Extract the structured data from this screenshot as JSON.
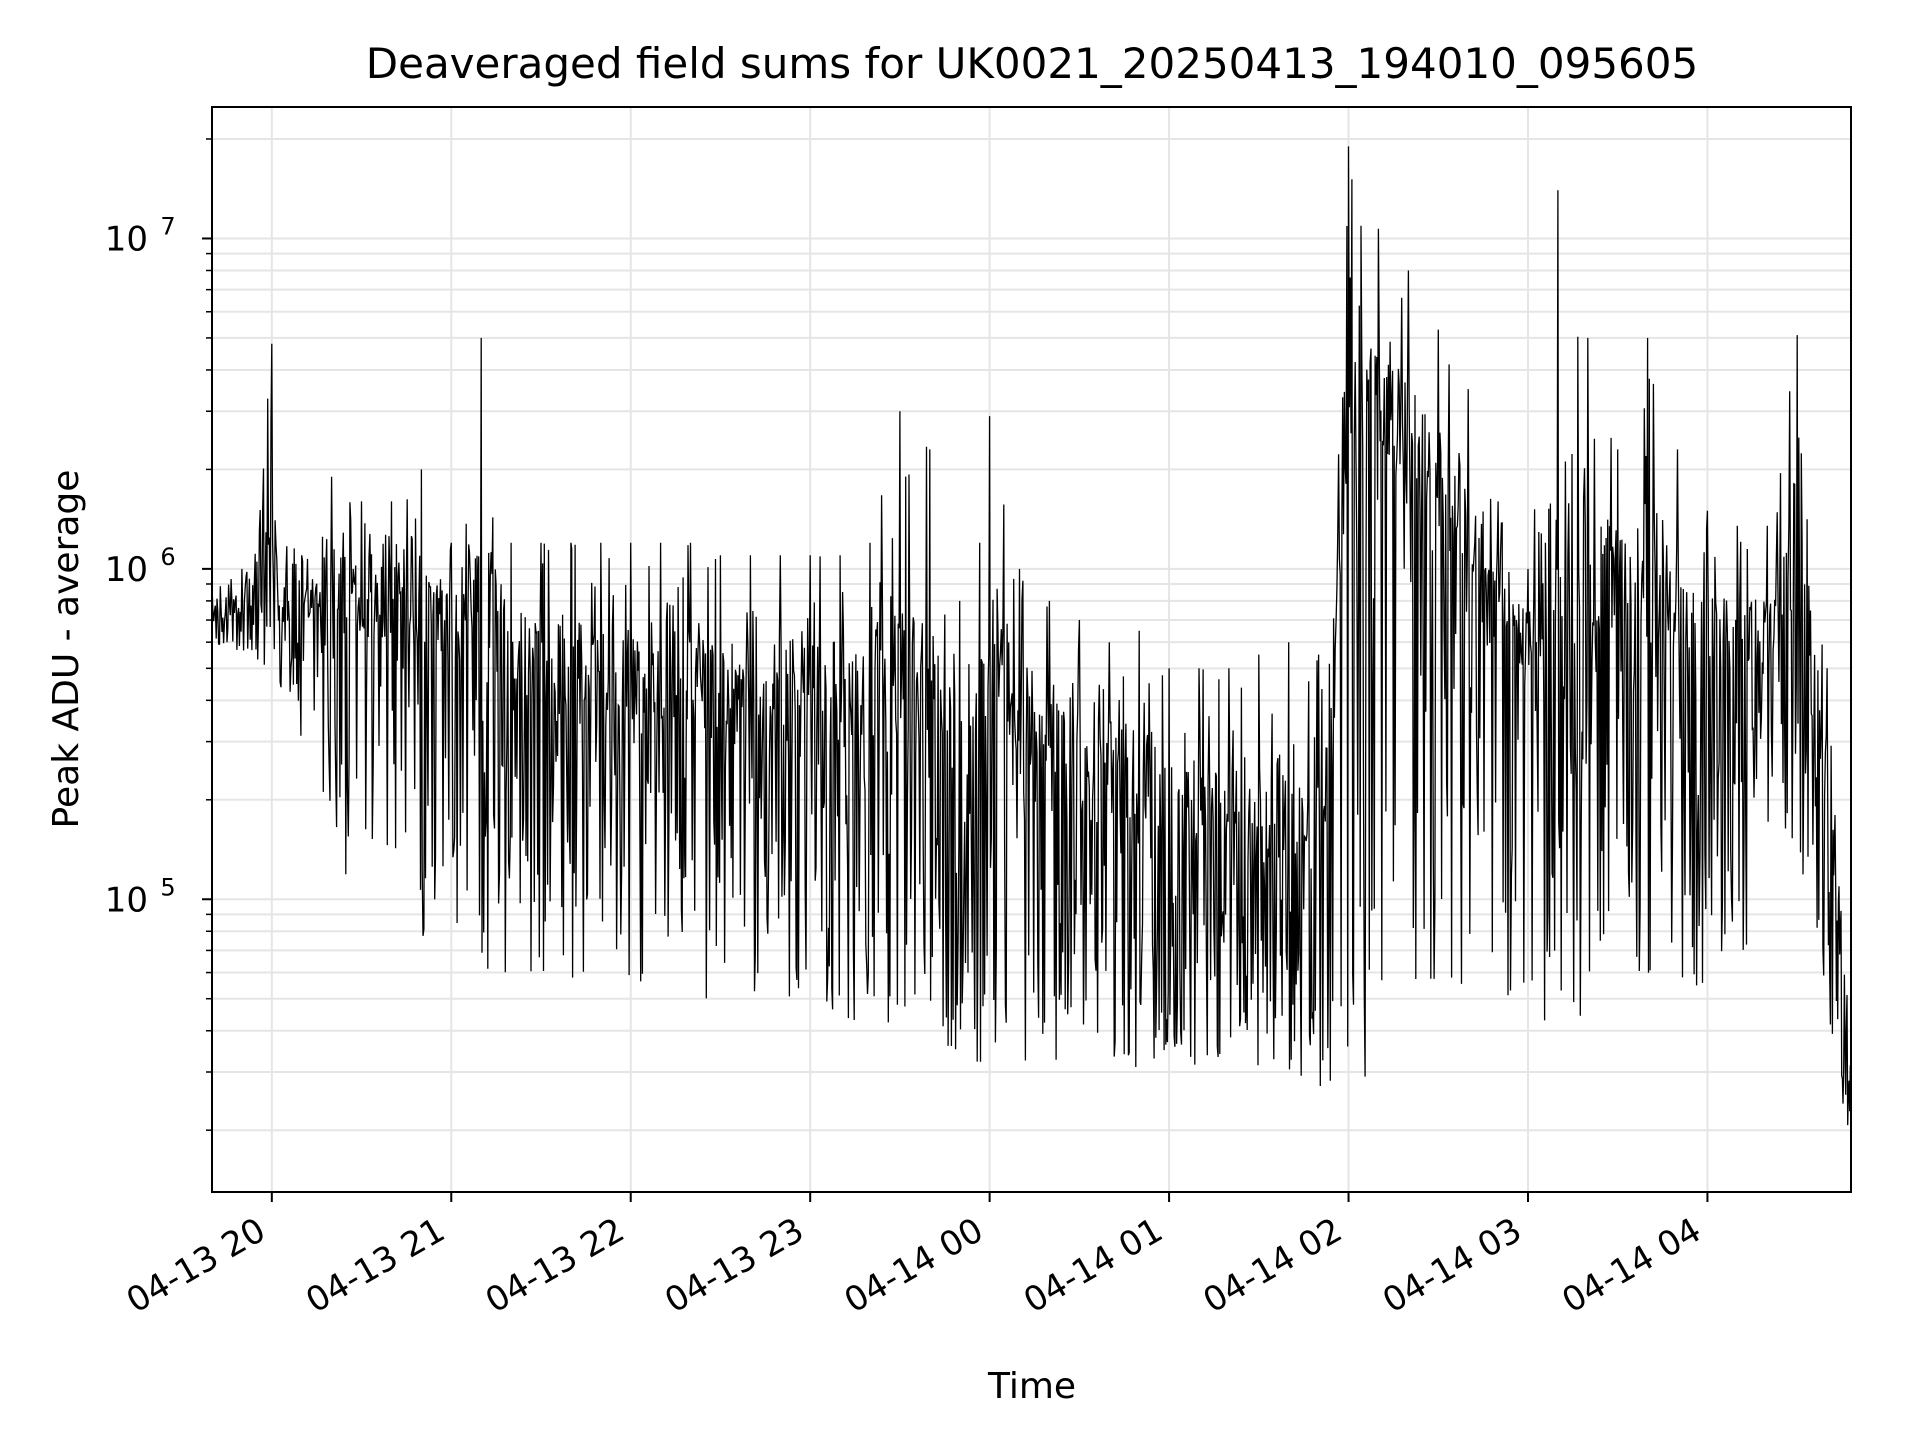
{
  "chart_data": {
    "type": "line",
    "title": "Deaveraged field sums for UK0021_20250413_194010_095605",
    "xlabel": "Time",
    "ylabel": "Peak ADU - average",
    "yscale": "log",
    "ylim": [
      13000,
      25000000
    ],
    "xlim": [
      "2025-04-13 19:40",
      "2025-04-14 04:48"
    ],
    "grid": true,
    "line_color": "#000000",
    "grid_color": "#e5e5e5",
    "x_ticks": [
      {
        "value": "2025-04-13 20:00",
        "label": "04-13 20"
      },
      {
        "value": "2025-04-13 21:00",
        "label": "04-13 21"
      },
      {
        "value": "2025-04-13 22:00",
        "label": "04-13 22"
      },
      {
        "value": "2025-04-13 23:00",
        "label": "04-13 23"
      },
      {
        "value": "2025-04-14 00:00",
        "label": "04-14 00"
      },
      {
        "value": "2025-04-14 01:00",
        "label": "04-14 01"
      },
      {
        "value": "2025-04-14 02:00",
        "label": "04-14 02"
      },
      {
        "value": "2025-04-14 03:00",
        "label": "04-14 03"
      },
      {
        "value": "2025-04-14 04:00",
        "label": "04-14 04"
      }
    ],
    "y_ticks": [
      {
        "value": 100000,
        "base": "10",
        "exp": "5"
      },
      {
        "value": 1000000,
        "base": "10",
        "exp": "6"
      },
      {
        "value": 10000000,
        "base": "10",
        "exp": "7"
      }
    ],
    "series": [
      {
        "x": [
          "2025-04-13 19:40",
          "2025-04-13 19:50",
          "2025-04-13 20:00",
          "2025-04-13 20:10",
          "2025-04-13 20:20",
          "2025-04-13 20:30",
          "2025-04-13 20:40",
          "2025-04-13 20:50",
          "2025-04-13 21:00",
          "2025-04-13 21:10",
          "2025-04-13 21:20",
          "2025-04-13 21:30",
          "2025-04-13 21:40",
          "2025-04-13 21:50",
          "2025-04-13 22:00",
          "2025-04-13 22:10",
          "2025-04-13 22:20",
          "2025-04-13 22:30",
          "2025-04-13 22:40",
          "2025-04-13 22:50",
          "2025-04-13 23:00",
          "2025-04-13 23:10",
          "2025-04-13 23:20",
          "2025-04-13 23:30",
          "2025-04-13 23:40",
          "2025-04-13 23:50",
          "2025-04-14 00:00",
          "2025-04-14 00:10",
          "2025-04-14 00:20",
          "2025-04-14 00:30",
          "2025-04-14 00:40",
          "2025-04-14 00:50",
          "2025-04-14 01:00",
          "2025-04-14 01:10",
          "2025-04-14 01:20",
          "2025-04-14 01:30",
          "2025-04-14 01:40",
          "2025-04-14 01:50",
          "2025-04-14 02:00",
          "2025-04-14 02:10",
          "2025-04-14 02:20",
          "2025-04-14 02:30",
          "2025-04-14 02:40",
          "2025-04-14 02:50",
          "2025-04-14 03:00",
          "2025-04-14 03:10",
          "2025-04-14 03:20",
          "2025-04-14 03:30",
          "2025-04-14 03:40",
          "2025-04-14 03:50",
          "2025-04-14 04:00",
          "2025-04-14 04:10",
          "2025-04-14 04:20",
          "2025-04-14 04:30",
          "2025-04-14 04:40",
          "2025-04-14 04:48"
        ],
        "y_low": [
          600000,
          550000,
          480000,
          300000,
          150000,
          90000,
          80000,
          70000,
          65000,
          60000,
          60000,
          60000,
          55000,
          55000,
          55000,
          55000,
          50000,
          50000,
          50000,
          50000,
          50000,
          45000,
          40000,
          40000,
          40000,
          30000,
          30000,
          30000,
          30000,
          30000,
          30000,
          30000,
          30000,
          30000,
          30000,
          30000,
          30000,
          25000,
          25000,
          30000,
          40000,
          45000,
          50000,
          50000,
          45000,
          40000,
          40000,
          45000,
          50000,
          50000,
          50000,
          60000,
          80000,
          150000,
          40000,
          18000
        ],
        "y_mid": [
          680000,
          720000,
          800000,
          700000,
          750000,
          650000,
          600000,
          550000,
          500000,
          450000,
          420000,
          400000,
          380000,
          380000,
          360000,
          350000,
          340000,
          330000,
          310000,
          300000,
          300000,
          290000,
          280000,
          300000,
          400000,
          300000,
          300000,
          260000,
          240000,
          200000,
          180000,
          160000,
          150000,
          140000,
          130000,
          130000,
          130000,
          120000,
          2000000,
          2500000,
          1500000,
          1300000,
          900000,
          700000,
          500000,
          450000,
          400000,
          700000,
          600000,
          500000,
          450000,
          450000,
          500000,
          650000,
          180000,
          25000
        ],
        "y_high": [
          900000,
          1000000,
          4800000,
          1100000,
          1900000,
          1600000,
          1600000,
          2000000,
          1200000,
          5000000,
          1200000,
          1200000,
          1200000,
          1200000,
          1200000,
          1200000,
          1200000,
          1100000,
          1100000,
          1100000,
          1100000,
          1100000,
          1200000,
          3000000,
          2300000,
          800000,
          2900000,
          1000000,
          800000,
          700000,
          600000,
          650000,
          500000,
          500000,
          500000,
          550000,
          600000,
          550000,
          19000000,
          10700000,
          8000000,
          5300000,
          3500000,
          1600000,
          1000000,
          14000000,
          5000000,
          2300000,
          5000000,
          2300000,
          1500000,
          1350000,
          1350000,
          5100000,
          500000,
          50000
        ]
      }
    ]
  }
}
